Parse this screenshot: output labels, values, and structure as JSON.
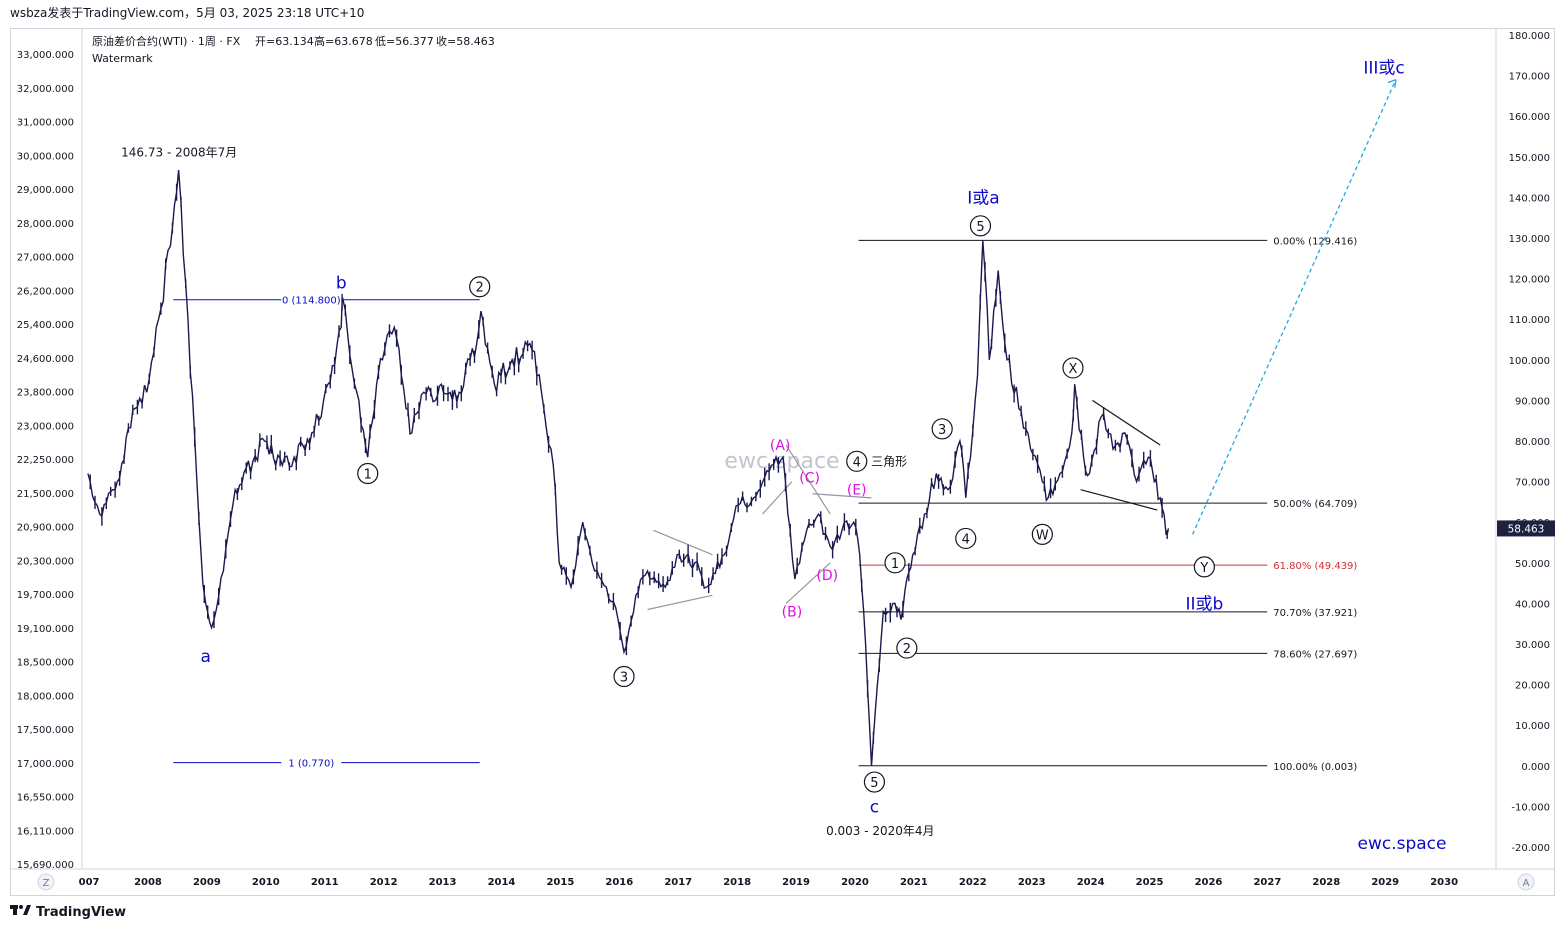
{
  "header": {
    "publisher_line": "wsbza发表于TradingView.com，5月 03, 2025 23:18 UTC+10"
  },
  "legend": {
    "symbol": "原油差价合约(WTI) · 1周 · FX",
    "open": "开=63.134",
    "high": "高=63.678",
    "low": "低=56.377",
    "close": "收=58.463",
    "watermark_label": "Watermark"
  },
  "watermark": "ewc.space",
  "brand": "ewc.space",
  "footer": {
    "logo_text": "TradingView",
    "logo_icon": "tradingview-logo-icon"
  },
  "scale_buttons": {
    "left": "Z",
    "right": "A"
  },
  "colors": {
    "price": "#1a1a4e",
    "wave_blue": "#0a0acc",
    "wave_magenta": "#e010e0",
    "fib_red": "#d0303a",
    "projection": "#22aadd",
    "last_price_bg": "#1f2140"
  },
  "chart_data": {
    "type": "line",
    "x_unit": "year",
    "x_range": [
      2006.9,
      2030.9
    ],
    "x_ticks": [
      "007",
      "2008",
      "2009",
      "2010",
      "2011",
      "2012",
      "2013",
      "2014",
      "2015",
      "2016",
      "2017",
      "2018",
      "2019",
      "2020",
      "2021",
      "2022",
      "2023",
      "2024",
      "2025",
      "2026",
      "2027",
      "2028",
      "2029",
      "2030"
    ],
    "left_axis": {
      "ticks": [
        "33,000.000",
        "32,000.000",
        "31,000.000",
        "30,000.000",
        "29,000.000",
        "28,000.000",
        "27,000.000",
        "26,200.000",
        "25,400.000",
        "24,600.000",
        "23,800.000",
        "23,000.000",
        "22,250.000",
        "21,500.000",
        "20,900.000",
        "20,300.000",
        "19,700.000",
        "19,100.000",
        "18,500.000",
        "18,000.000",
        "17,500.000",
        "17,000.000",
        "16,550.000",
        "16,110.000",
        "15,690.000"
      ]
    },
    "right_axis": {
      "range": [
        -25,
        185
      ],
      "ticks": [
        "180.000",
        "170.000",
        "160.000",
        "150.000",
        "140.000",
        "130.000",
        "120.000",
        "110.000",
        "100.000",
        "90.000",
        "80.000",
        "70.000",
        "60.000",
        "50.000",
        "40.000",
        "30.000",
        "20.000",
        "10.000",
        "0.000",
        "-10.000",
        "-20.000"
      ],
      "tick_values": [
        180,
        170,
        160,
        150,
        140,
        130,
        120,
        110,
        100,
        90,
        80,
        70,
        60,
        50,
        40,
        30,
        20,
        10,
        0,
        -10,
        -20
      ],
      "last_price": "58.463",
      "last_price_value": 58.463
    },
    "series": [
      {
        "points": [
          [
            2007.0,
            72
          ],
          [
            2007.2,
            62
          ],
          [
            2007.5,
            70
          ],
          [
            2007.8,
            88
          ],
          [
            2008.0,
            92
          ],
          [
            2008.2,
            110
          ],
          [
            2008.4,
            128
          ],
          [
            2008.54,
            146.73
          ],
          [
            2008.7,
            110
          ],
          [
            2008.85,
            70
          ],
          [
            2008.95,
            45
          ],
          [
            2009.0,
            40
          ],
          [
            2009.1,
            34
          ],
          [
            2009.3,
            48
          ],
          [
            2009.5,
            68
          ],
          [
            2009.8,
            75
          ],
          [
            2010.0,
            80
          ],
          [
            2010.3,
            74
          ],
          [
            2010.5,
            76
          ],
          [
            2010.8,
            82
          ],
          [
            2011.0,
            90
          ],
          [
            2011.3,
            108
          ],
          [
            2011.33,
            114.8
          ],
          [
            2011.6,
            90
          ],
          [
            2011.75,
            76
          ],
          [
            2011.9,
            94
          ],
          [
            2012.0,
            100
          ],
          [
            2012.2,
            108
          ],
          [
            2012.4,
            88
          ],
          [
            2012.5,
            82
          ],
          [
            2012.7,
            92
          ],
          [
            2012.9,
            90
          ],
          [
            2013.0,
            94
          ],
          [
            2013.3,
            92
          ],
          [
            2013.6,
            104
          ],
          [
            2013.67,
            112
          ],
          [
            2013.9,
            94
          ],
          [
            2014.2,
            100
          ],
          [
            2014.5,
            104
          ],
          [
            2014.7,
            92
          ],
          [
            2014.9,
            74
          ],
          [
            2015.0,
            50
          ],
          [
            2015.2,
            44
          ],
          [
            2015.4,
            60
          ],
          [
            2015.6,
            48
          ],
          [
            2015.8,
            44
          ],
          [
            2016.0,
            36
          ],
          [
            2016.1,
            28
          ],
          [
            2016.3,
            42
          ],
          [
            2016.5,
            48
          ],
          [
            2016.8,
            44
          ],
          [
            2017.0,
            52
          ],
          [
            2017.3,
            50
          ],
          [
            2017.5,
            44
          ],
          [
            2017.8,
            52
          ],
          [
            2018.0,
            64
          ],
          [
            2018.3,
            66
          ],
          [
            2018.6,
            74
          ],
          [
            2018.8,
            76
          ],
          [
            2019.0,
            46
          ],
          [
            2019.2,
            58
          ],
          [
            2019.4,
            62
          ],
          [
            2019.6,
            54
          ],
          [
            2019.8,
            58
          ],
          [
            2020.0,
            60
          ],
          [
            2020.1,
            52
          ],
          [
            2020.2,
            30
          ],
          [
            2020.3,
            0.003
          ],
          [
            2020.4,
            20
          ],
          [
            2020.5,
            38
          ],
          [
            2020.7,
            40
          ],
          [
            2020.8,
            36
          ],
          [
            2020.9,
            46
          ],
          [
            2021.0,
            52
          ],
          [
            2021.2,
            62
          ],
          [
            2021.4,
            72
          ],
          [
            2021.6,
            68
          ],
          [
            2021.8,
            80
          ],
          [
            2021.9,
            66
          ],
          [
            2022.1,
            96
          ],
          [
            2022.19,
            129.4
          ],
          [
            2022.3,
            100
          ],
          [
            2022.45,
            122
          ],
          [
            2022.6,
            100
          ],
          [
            2022.8,
            88
          ],
          [
            2023.0,
            78
          ],
          [
            2023.2,
            70
          ],
          [
            2023.3,
            66
          ],
          [
            2023.5,
            72
          ],
          [
            2023.7,
            82
          ],
          [
            2023.75,
            94
          ],
          [
            2023.9,
            76
          ],
          [
            2024.0,
            72
          ],
          [
            2024.2,
            86
          ],
          [
            2024.4,
            78
          ],
          [
            2024.6,
            82
          ],
          [
            2024.8,
            70
          ],
          [
            2025.0,
            76
          ],
          [
            2025.1,
            70
          ],
          [
            2025.2,
            66
          ],
          [
            2025.3,
            57
          ],
          [
            2025.34,
            58.463
          ]
        ]
      }
    ],
    "fib_retracement": [
      {
        "label": "0.00% (129.416)",
        "value": 129.416
      },
      {
        "label": "50.00% (64.709)",
        "value": 64.709
      },
      {
        "label": "61.80% (49.439)",
        "value": 49.439
      },
      {
        "label": "70.70% (37.921)",
        "value": 37.921
      },
      {
        "label": "78.60% (27.697)",
        "value": 27.697
      },
      {
        "label": "100.00% (0.003)",
        "value": 0.003
      }
    ],
    "fib_extension": [
      {
        "label": "0 (114.800)",
        "value": 114.8
      },
      {
        "label": "1 (0.770)",
        "value": 0.77
      }
    ],
    "annotations": [
      {
        "text": "146.73 - 2008年7月",
        "x": 2008.55,
        "y": 151,
        "kind": "note"
      },
      {
        "text": "0.003 - 2020年4月",
        "x": 2020.45,
        "y": -16,
        "kind": "note"
      },
      {
        "text": "三角形",
        "x": 2020.6,
        "y": 75,
        "kind": "note"
      },
      {
        "text": "a",
        "x": 2009.0,
        "y": 27,
        "kind": "blue"
      },
      {
        "text": "b",
        "x": 2011.3,
        "y": 119,
        "kind": "blue"
      },
      {
        "text": "c",
        "x": 2020.35,
        "y": -10,
        "kind": "blue"
      },
      {
        "text": "I或a",
        "x": 2022.2,
        "y": 140,
        "kind": "blue"
      },
      {
        "text": "II或b",
        "x": 2025.95,
        "y": 40,
        "kind": "blue"
      },
      {
        "text": "III或c",
        "x": 2029.0,
        "y": 172,
        "kind": "blue"
      },
      {
        "text": "1",
        "x": 2011.75,
        "y": 72,
        "kind": "circle"
      },
      {
        "text": "2",
        "x": 2013.65,
        "y": 118,
        "kind": "circle"
      },
      {
        "text": "3",
        "x": 2016.1,
        "y": 22,
        "kind": "circle"
      },
      {
        "text": "4",
        "x": 2020.05,
        "y": 75,
        "kind": "circle"
      },
      {
        "text": "5",
        "x": 2020.35,
        "y": -4,
        "kind": "circle"
      },
      {
        "text": "1",
        "x": 2020.7,
        "y": 50,
        "kind": "circle"
      },
      {
        "text": "2",
        "x": 2020.9,
        "y": 29,
        "kind": "circle"
      },
      {
        "text": "3",
        "x": 2021.5,
        "y": 83,
        "kind": "circle"
      },
      {
        "text": "4",
        "x": 2021.9,
        "y": 56,
        "kind": "circle"
      },
      {
        "text": "5",
        "x": 2022.15,
        "y": 133,
        "kind": "circle"
      },
      {
        "text": "W",
        "x": 2023.2,
        "y": 57,
        "kind": "circle"
      },
      {
        "text": "X",
        "x": 2023.72,
        "y": 98,
        "kind": "circle"
      },
      {
        "text": "Y",
        "x": 2025.95,
        "y": 49,
        "kind": "circle"
      },
      {
        "text": "(A)",
        "x": 2018.75,
        "y": 79,
        "kind": "magenta"
      },
      {
        "text": "(B)",
        "x": 2018.95,
        "y": 38,
        "kind": "magenta"
      },
      {
        "text": "(C)",
        "x": 2019.25,
        "y": 71,
        "kind": "magenta"
      },
      {
        "text": "(D)",
        "x": 2019.55,
        "y": 47,
        "kind": "magenta"
      },
      {
        "text": "(E)",
        "x": 2020.05,
        "y": 68,
        "kind": "magenta"
      }
    ],
    "trendlines": [
      {
        "from": [
          2016.5,
          38.5
        ],
        "to": [
          2017.6,
          42
        ],
        "color": "gray"
      },
      {
        "from": [
          2016.6,
          58
        ],
        "to": [
          2017.6,
          52
        ],
        "color": "gray"
      },
      {
        "from": [
          2018.85,
          79
        ],
        "to": [
          2019.6,
          62
        ],
        "color": "gray"
      },
      {
        "from": [
          2018.85,
          40
        ],
        "to": [
          2019.6,
          50
        ],
        "color": "gray"
      },
      {
        "from": [
          2018.45,
          62
        ],
        "to": [
          2018.95,
          70
        ],
        "color": "gray"
      },
      {
        "from": [
          2019.3,
          67
        ],
        "to": [
          2020.3,
          66
        ],
        "color": "gray"
      },
      {
        "from": [
          2024.05,
          90
        ],
        "to": [
          2025.2,
          79
        ],
        "color": "dark"
      },
      {
        "from": [
          2023.85,
          68
        ],
        "to": [
          2025.15,
          63
        ],
        "color": "dark"
      },
      {
        "from": [
          2025.75,
          57
        ],
        "to": [
          2029.2,
          169
        ],
        "color": "projection"
      }
    ]
  }
}
